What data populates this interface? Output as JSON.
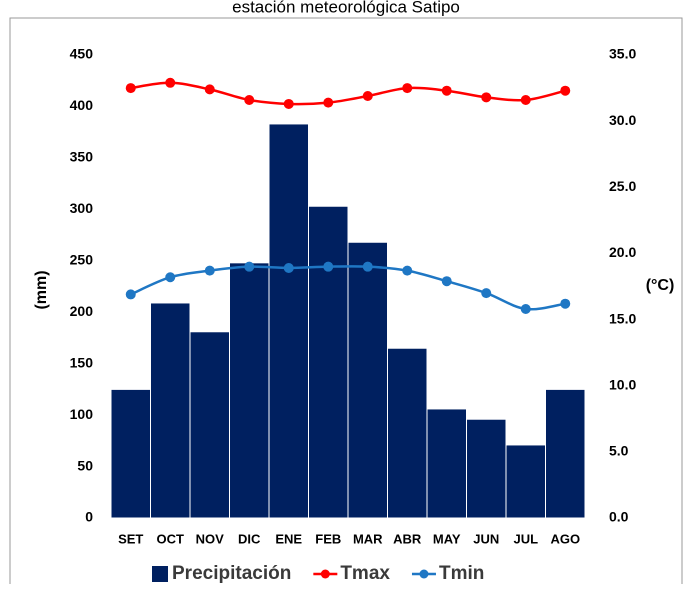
{
  "chart_data": {
    "type": "bar_line",
    "title": "estación meteorológica Satipo",
    "y_label": "(mm)",
    "y2_label": "(°C)",
    "categories": [
      "SET",
      "OCT",
      "NOV",
      "DIC",
      "ENE",
      "FEB",
      "MAR",
      "ABR",
      "MAY",
      "JUN",
      "JUL",
      "AGO"
    ],
    "series": [
      {
        "name": "Precipitación",
        "color": "#002060",
        "type": "bar",
        "values": [
          125,
          209,
          181,
          248,
          383,
          303,
          268,
          165,
          106,
          96,
          71,
          125
        ]
      },
      {
        "name": "Tmax",
        "color": "#ff0000",
        "type": "line",
        "axis": "y2",
        "values": [
          32.5,
          32.9,
          32.4,
          31.6,
          31.3,
          31.4,
          31.9,
          32.5,
          32.3,
          31.8,
          31.6,
          32.3
        ]
      },
      {
        "name": "Tmin",
        "color": "#1f77c4",
        "type": "line",
        "axis": "y2",
        "values": [
          16.9,
          18.2,
          18.7,
          19.0,
          18.9,
          19.0,
          19.0,
          18.7,
          17.9,
          17.0,
          15.8,
          16.2
        ]
      }
    ],
    "ylim": [
      0,
      450
    ],
    "yticks": [
      0,
      50,
      100,
      150,
      200,
      250,
      300,
      350,
      400,
      450
    ],
    "y2lim": [
      0,
      35
    ],
    "y2ticks": [
      {
        "value": 0,
        "label": "0.0"
      },
      {
        "value": 5,
        "label": "5.0"
      },
      {
        "value": 10,
        "label": "10.0"
      },
      {
        "value": 15,
        "label": "15.0"
      },
      {
        "value": 20,
        "label": "20.0"
      },
      {
        "value": 25,
        "label": "25.0"
      },
      {
        "value": 30,
        "label": "30.0"
      },
      {
        "value": 35,
        "label": "35.0"
      }
    ],
    "legend": "bottom"
  }
}
